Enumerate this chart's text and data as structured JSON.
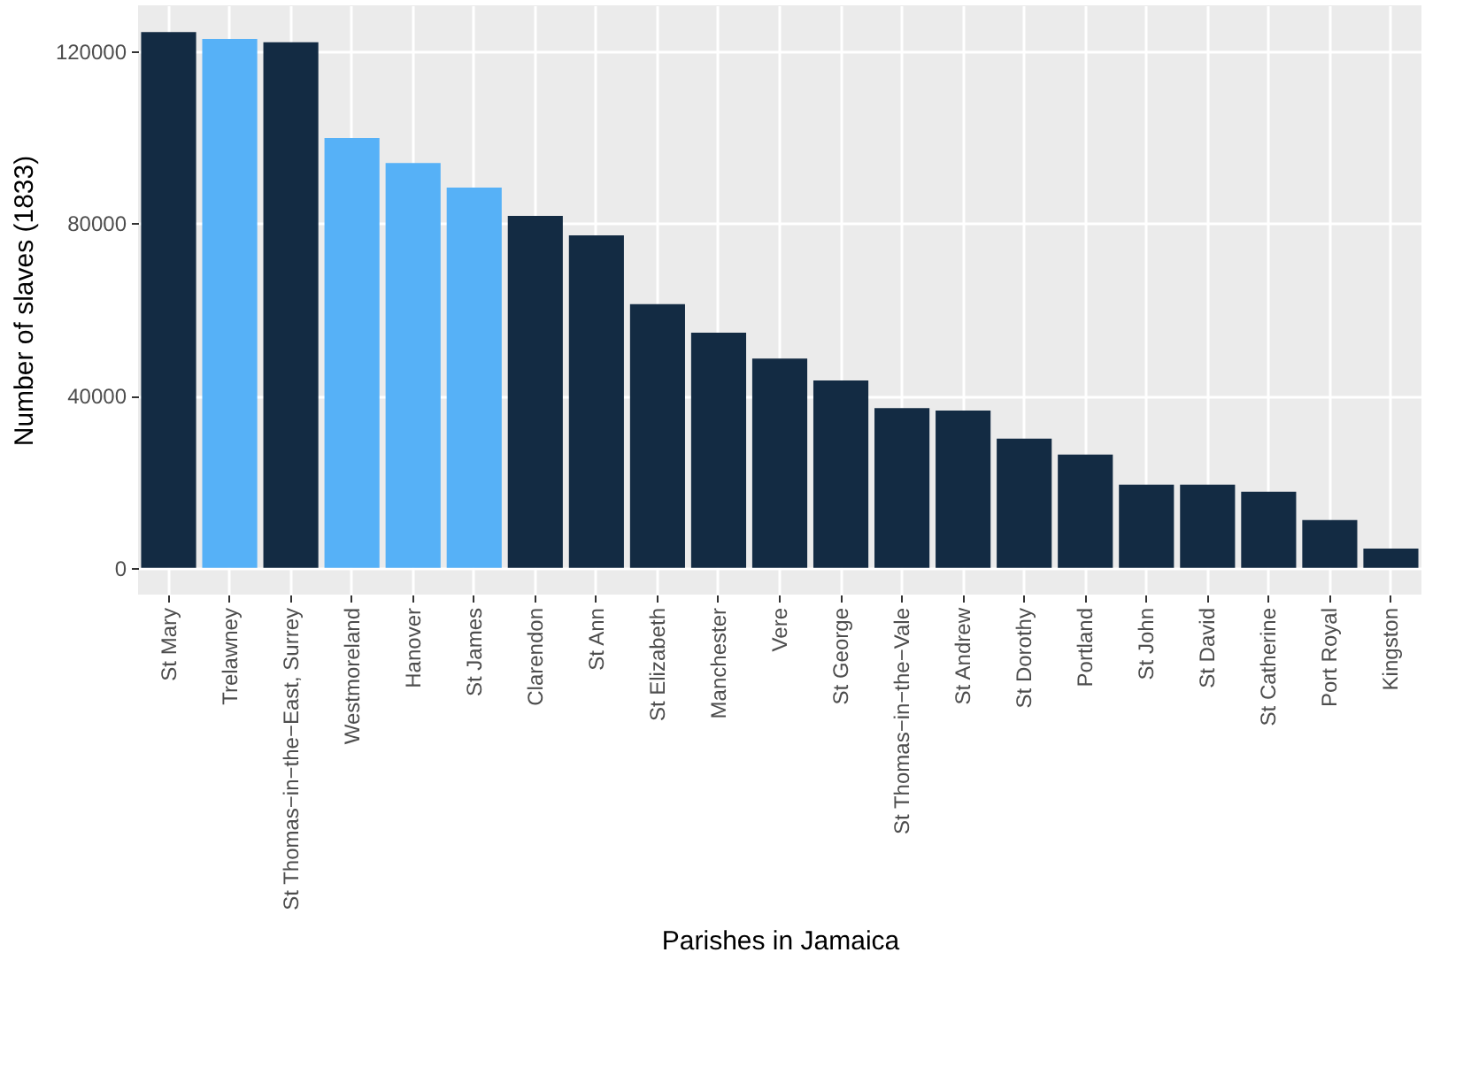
{
  "chart_data": {
    "type": "bar",
    "xlabel": "Parishes in Jamaica",
    "ylabel": "Number of slaves (1833)",
    "categories": [
      "St Mary",
      "Trelawney",
      "St Thomas−in−the−East, Surrey",
      "Westmoreland",
      "Hanover",
      "St James",
      "Clarendon",
      "St Ann",
      "St Elizabeth",
      "Manchester",
      "Vere",
      "St George",
      "St Thomas−in−the−Vale",
      "St Andrew",
      "St Dorothy",
      "Portland",
      "St John",
      "St David",
      "St Catherine",
      "Port Royal",
      "Kingston"
    ],
    "values": [
      124400,
      122800,
      122000,
      99800,
      94000,
      88300,
      81700,
      77200,
      61200,
      54600,
      48600,
      43500,
      37100,
      36500,
      30000,
      26300,
      19300,
      19300,
      17700,
      11100,
      4500
    ],
    "colors": [
      "#132b43",
      "#56b1f7",
      "#132b43",
      "#56b1f7",
      "#56b1f7",
      "#56b1f7",
      "#132b43",
      "#132b43",
      "#132b43",
      "#132b43",
      "#132b43",
      "#132b43",
      "#132b43",
      "#132b43",
      "#132b43",
      "#132b43",
      "#132b43",
      "#132b43",
      "#132b43",
      "#132b43",
      "#132b43"
    ],
    "ylim": [
      -6200,
      130600
    ],
    "yticks": [
      0,
      40000,
      80000,
      120000
    ],
    "grid": true
  }
}
